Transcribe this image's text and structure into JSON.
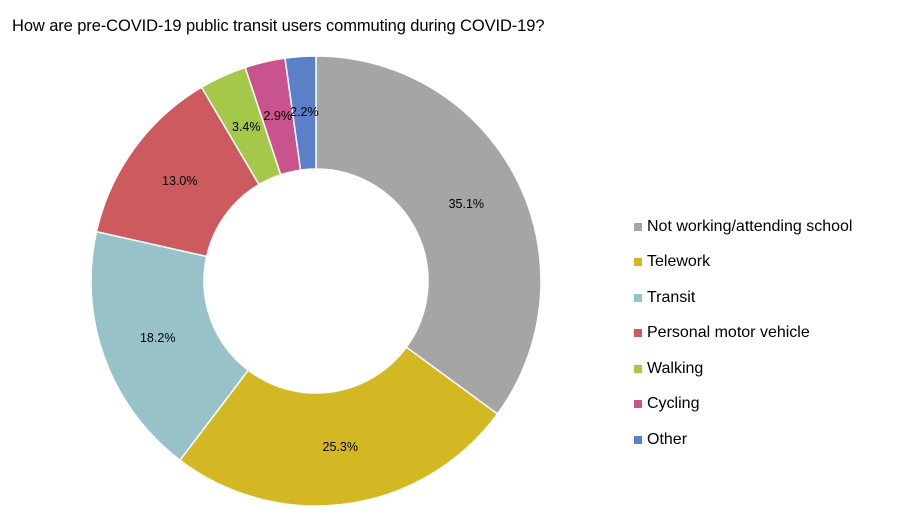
{
  "chart_data": {
    "type": "pie",
    "donut": true,
    "title": "How are pre-COVID-19 public transit users commuting during COVID-19?",
    "categories": [
      "Not working/attending school",
      "Telework",
      "Transit",
      "Personal motor vehicle",
      "Walking",
      "Cycling",
      "Other"
    ],
    "values": [
      35.1,
      25.3,
      18.2,
      13.0,
      3.4,
      2.9,
      2.2
    ],
    "labels": [
      "35.1%",
      "25.3%",
      "18.2%",
      "13.0%",
      "3.4%",
      "2.9%",
      "2.2%"
    ],
    "colors": [
      "#a5a5a5",
      "#d4b823",
      "#97c3c8",
      "#cd5a5e",
      "#a5c84a",
      "#c9538c",
      "#5b7fc9"
    ],
    "legend_position": "right",
    "start": "top, clockwise"
  }
}
